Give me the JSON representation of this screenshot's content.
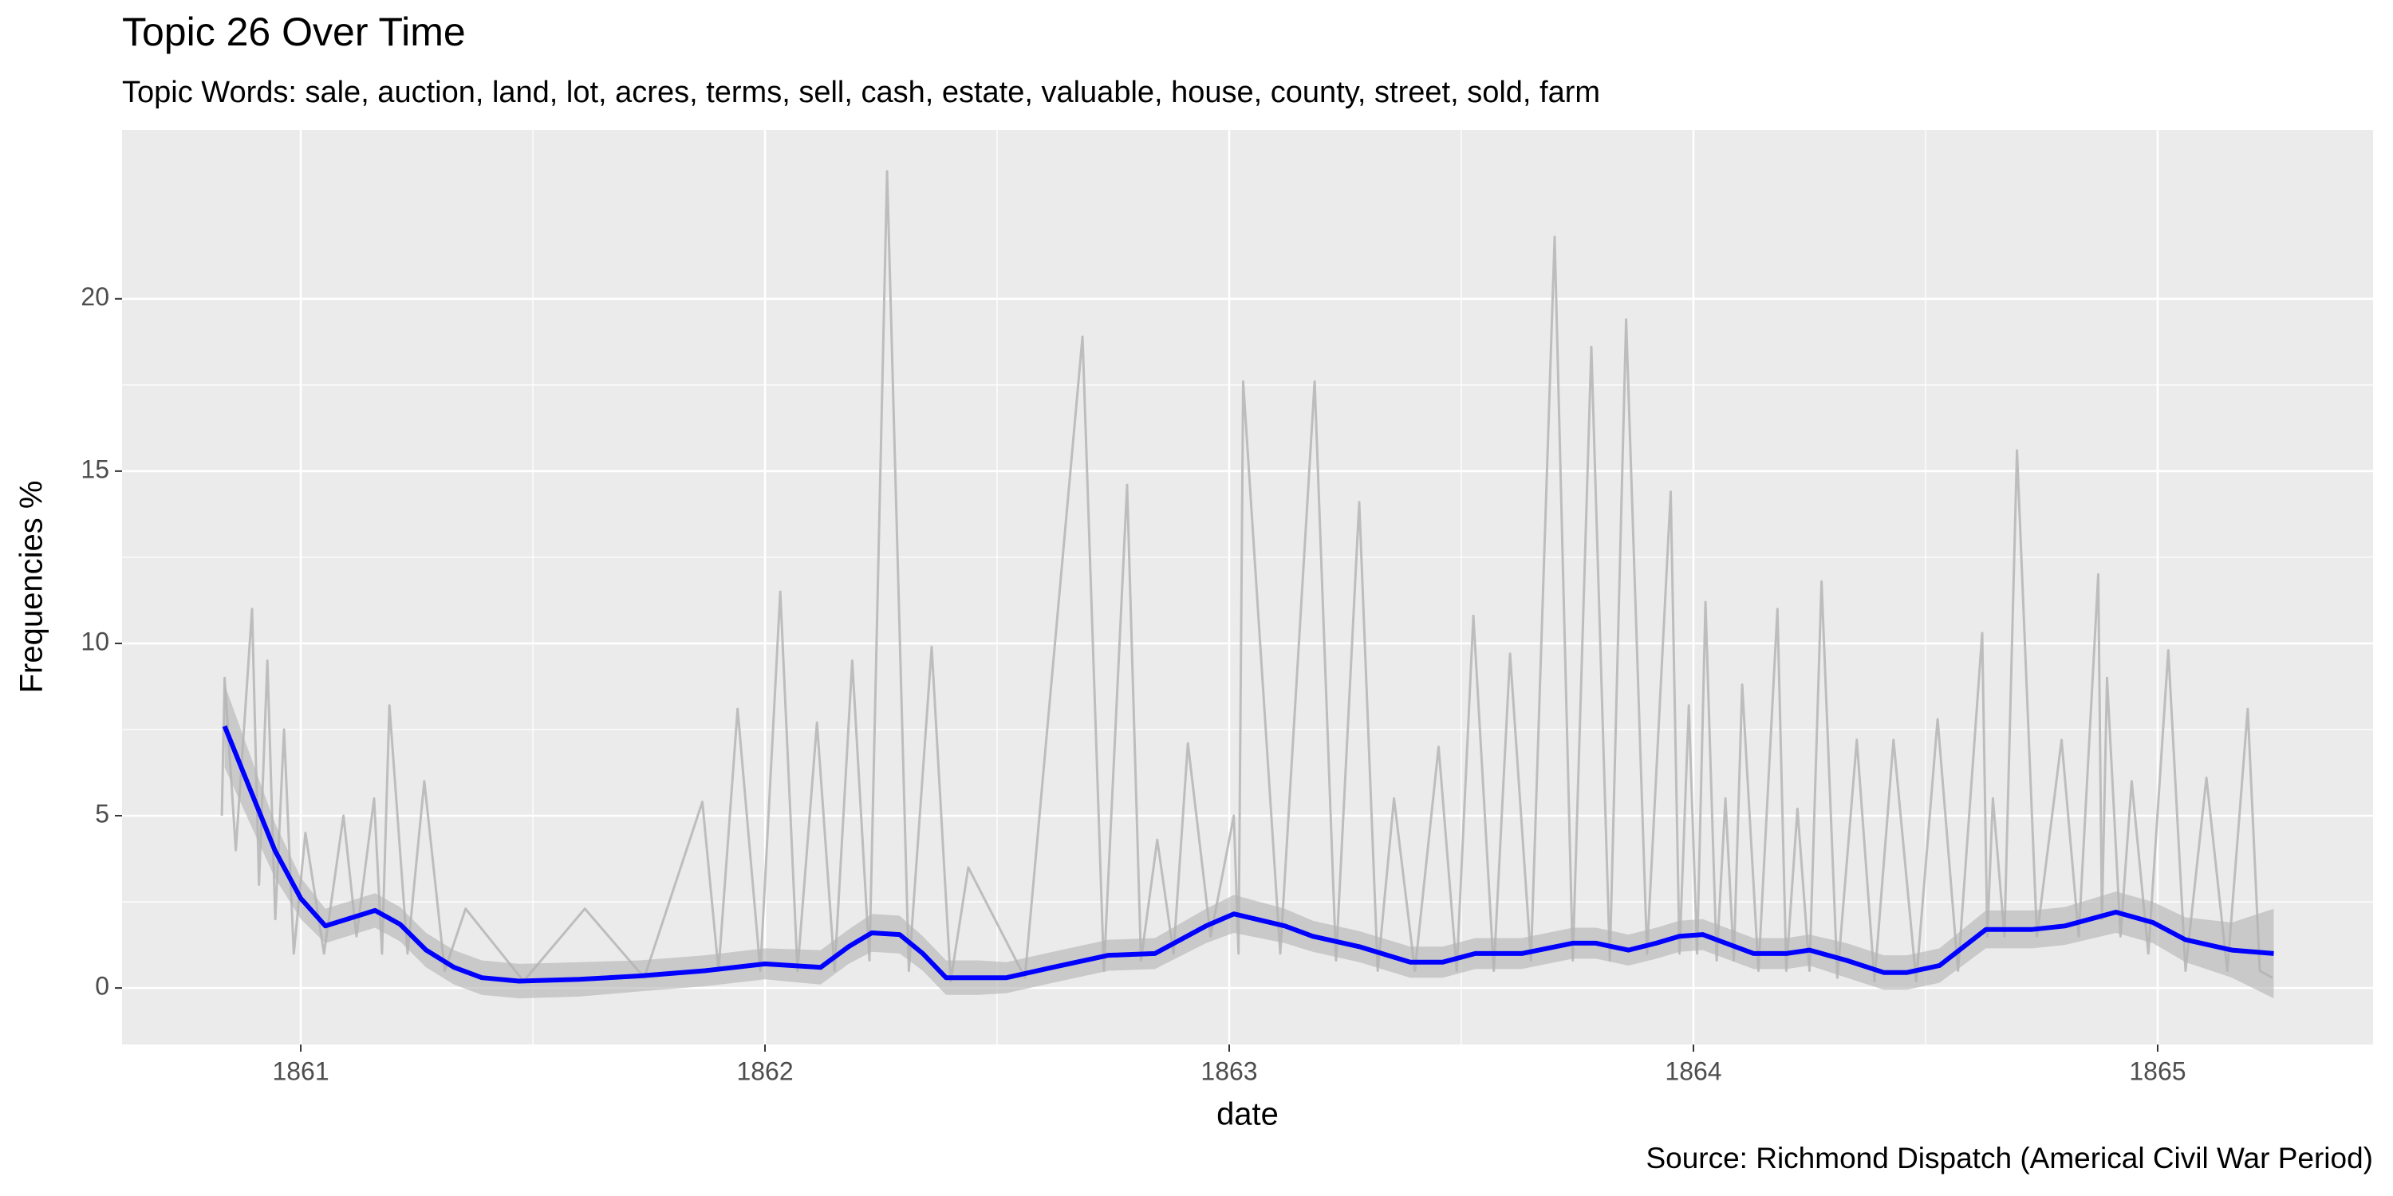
{
  "chart_data": {
    "type": "line",
    "title": "Topic 26 Over Time",
    "subtitle": "Topic Words: sale, auction, land, lot, acres, terms, sell, cash, estate, valuable, house, county, street, sold, farm",
    "x_label": "date",
    "y_label": "Frequencies %",
    "caption": "Source: Richmond Dispatch (Americal Civil War Period)",
    "xlim": [
      1860.615,
      1865.464
    ],
    "xticks": [
      1861,
      1862,
      1863,
      1864,
      1865
    ],
    "ylim": [
      -1.64,
      24.9
    ],
    "yticks": [
      0,
      5,
      10,
      15,
      20
    ],
    "grid": true,
    "raw_color": "#bdbdbd",
    "smooth_color": "#0000ff",
    "band_color": "#b3b3b3",
    "raw_x": [
      1860.83,
      1860.836,
      1860.86,
      1860.895,
      1860.91,
      1860.928,
      1860.945,
      1860.964,
      1860.985,
      1861.01,
      1861.05,
      1861.092,
      1861.12,
      1861.158,
      1861.175,
      1861.191,
      1861.23,
      1861.266,
      1861.31,
      1861.355,
      1861.48,
      1861.612,
      1861.74,
      1861.865,
      1861.9,
      1861.941,
      1861.99,
      1862.033,
      1862.07,
      1862.112,
      1862.15,
      1862.188,
      1862.225,
      1862.263,
      1862.31,
      1862.359,
      1862.4,
      1862.438,
      1862.56,
      1862.684,
      1862.73,
      1862.78,
      1862.81,
      1862.845,
      1862.88,
      1862.911,
      1862.96,
      1863.01,
      1863.02,
      1863.03,
      1863.11,
      1863.184,
      1863.23,
      1863.28,
      1863.32,
      1863.355,
      1863.4,
      1863.451,
      1863.49,
      1863.526,
      1863.57,
      1863.605,
      1863.65,
      1863.701,
      1863.74,
      1863.78,
      1863.82,
      1863.855,
      1863.9,
      1863.951,
      1863.97,
      1863.99,
      1864.008,
      1864.026,
      1864.05,
      1864.069,
      1864.087,
      1864.105,
      1864.14,
      1864.181,
      1864.2,
      1864.224,
      1864.25,
      1864.276,
      1864.31,
      1864.352,
      1864.39,
      1864.431,
      1864.48,
      1864.526,
      1864.57,
      1864.622,
      1864.633,
      1864.645,
      1864.67,
      1864.697,
      1864.74,
      1864.793,
      1864.83,
      1864.872,
      1864.88,
      1864.891,
      1864.92,
      1864.944,
      1864.98,
      1865.023,
      1865.06,
      1865.105,
      1865.15,
      1865.194,
      1865.22,
      1865.247
    ],
    "raw_values": [
      5.0,
      9.0,
      4.0,
      11.0,
      3.0,
      9.5,
      2.0,
      7.5,
      1.0,
      4.5,
      1.0,
      5.0,
      1.5,
      5.5,
      1.0,
      8.2,
      1.0,
      6.0,
      0.5,
      2.3,
      0.2,
      2.3,
      0.3,
      5.4,
      0.5,
      8.1,
      0.5,
      11.5,
      0.5,
      7.7,
      0.5,
      9.5,
      0.8,
      23.7,
      0.5,
      9.9,
      0.2,
      3.5,
      0.3,
      18.9,
      0.5,
      14.6,
      0.8,
      4.3,
      1.0,
      7.1,
      1.5,
      5.0,
      1.0,
      17.6,
      1.0,
      17.6,
      0.8,
      14.1,
      0.5,
      5.5,
      0.5,
      7.0,
      0.5,
      10.8,
      0.5,
      9.7,
      0.8,
      21.8,
      0.8,
      18.6,
      0.8,
      19.4,
      1.0,
      14.4,
      1.0,
      8.2,
      1.0,
      11.2,
      0.8,
      5.5,
      0.8,
      8.8,
      0.5,
      11.0,
      0.5,
      5.2,
      0.5,
      11.8,
      0.3,
      7.2,
      0.2,
      7.2,
      0.2,
      7.8,
      0.5,
      10.3,
      1.5,
      5.5,
      1.5,
      15.6,
      1.5,
      7.2,
      1.5,
      12.0,
      2.0,
      9.0,
      1.5,
      6.0,
      1.0,
      9.8,
      0.5,
      6.1,
      0.5,
      8.1,
      0.5,
      0.3
    ],
    "x": [
      1860.836,
      1860.89,
      1860.944,
      1861.0,
      1861.053,
      1861.16,
      1861.214,
      1861.27,
      1861.33,
      1861.39,
      1861.47,
      1861.6,
      1861.73,
      1861.87,
      1862.0,
      1862.12,
      1862.18,
      1862.23,
      1862.29,
      1862.34,
      1862.39,
      1862.46,
      1862.52,
      1862.62,
      1862.74,
      1862.84,
      1862.95,
      1863.01,
      1863.12,
      1863.18,
      1863.28,
      1863.39,
      1863.46,
      1863.53,
      1863.63,
      1863.74,
      1863.79,
      1863.86,
      1863.92,
      1863.97,
      1864.02,
      1864.13,
      1864.2,
      1864.25,
      1864.33,
      1864.41,
      1864.46,
      1864.53,
      1864.63,
      1864.73,
      1864.8,
      1864.91,
      1864.99,
      1865.06,
      1865.16,
      1865.25
    ],
    "smooth_values": [
      7.6,
      5.8,
      4.0,
      2.6,
      1.8,
      2.25,
      1.85,
      1.1,
      0.6,
      0.3,
      0.2,
      0.25,
      0.35,
      0.5,
      0.7,
      0.6,
      1.2,
      1.6,
      1.55,
      1.0,
      0.3,
      0.3,
      0.3,
      0.6,
      0.95,
      1.0,
      1.8,
      2.15,
      1.8,
      1.5,
      1.2,
      0.75,
      0.75,
      1.0,
      1.0,
      1.3,
      1.3,
      1.1,
      1.3,
      1.5,
      1.55,
      1.0,
      1.0,
      1.1,
      0.8,
      0.45,
      0.45,
      0.65,
      1.7,
      1.7,
      1.8,
      2.2,
      1.9,
      1.4,
      1.1,
      1.0
    ],
    "band_lower": [
      6.4,
      4.8,
      3.2,
      2.0,
      1.3,
      1.75,
      1.35,
      0.6,
      0.1,
      -0.2,
      -0.3,
      -0.25,
      -0.1,
      0.05,
      0.25,
      0.1,
      0.7,
      1.05,
      1.0,
      0.5,
      -0.2,
      -0.2,
      -0.15,
      0.15,
      0.5,
      0.55,
      1.3,
      1.6,
      1.3,
      1.05,
      0.75,
      0.3,
      0.3,
      0.55,
      0.55,
      0.85,
      0.85,
      0.65,
      0.85,
      1.05,
      1.1,
      0.55,
      0.55,
      0.65,
      0.3,
      -0.05,
      -0.05,
      0.15,
      1.15,
      1.15,
      1.25,
      1.6,
      1.3,
      0.75,
      0.3,
      -0.3
    ],
    "band_upper": [
      8.8,
      6.8,
      4.8,
      3.2,
      2.3,
      2.75,
      2.35,
      1.6,
      1.1,
      0.8,
      0.7,
      0.75,
      0.8,
      0.95,
      1.15,
      1.1,
      1.7,
      2.15,
      2.1,
      1.5,
      0.8,
      0.8,
      0.75,
      1.05,
      1.4,
      1.45,
      2.3,
      2.7,
      2.3,
      1.95,
      1.65,
      1.2,
      1.2,
      1.45,
      1.45,
      1.75,
      1.75,
      1.55,
      1.75,
      1.95,
      2.0,
      1.45,
      1.45,
      1.55,
      1.3,
      0.95,
      0.95,
      1.15,
      2.25,
      2.25,
      2.35,
      2.8,
      2.5,
      2.05,
      1.9,
      2.3
    ]
  }
}
